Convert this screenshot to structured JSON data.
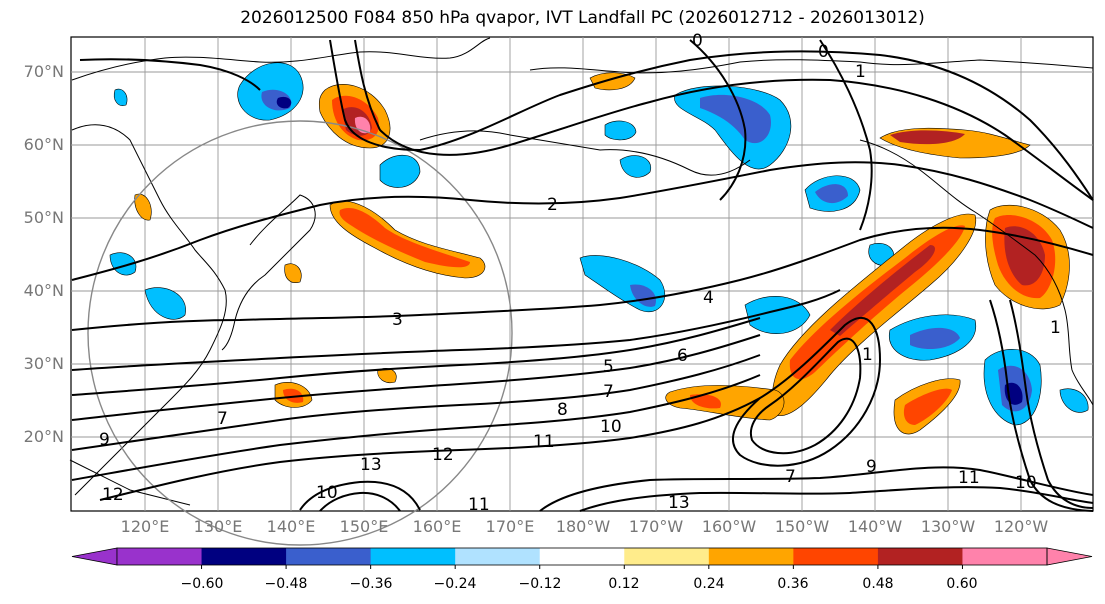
{
  "title": "2026012500 F084 850 hPa qvapor, IVT Landfall PC (2026012712 - 2026013012)",
  "lat_labels": [
    "70°N",
    "60°N",
    "50°N",
    "40°N",
    "30°N",
    "20°N"
  ],
  "lon_labels": [
    "120°E",
    "130°E",
    "140°E",
    "150°E",
    "160°E",
    "170°E",
    "180°W",
    "170°W",
    "160°W",
    "150°W",
    "140°W",
    "130°W",
    "120°W"
  ],
  "colorbar": {
    "colors": [
      "#9932CC",
      "#000080",
      "#3A5FCD",
      "#00BFFF",
      "#B0E2FF",
      "#FFFFFF",
      "#FFEC8B",
      "#FFA500",
      "#FF4500",
      "#B22222",
      "#FF82AB"
    ],
    "ticks": [
      "−0.60",
      "−0.48",
      "−0.36",
      "−0.24",
      "−0.12",
      "0.12",
      "0.24",
      "0.36",
      "0.48",
      "0.60"
    ]
  },
  "contour_labels": [
    "0",
    "0",
    "1",
    "2",
    "3",
    "4",
    "5",
    "6",
    "7",
    "7",
    "8",
    "9",
    "10",
    "11",
    "12",
    "13",
    "11",
    "10",
    "9",
    "7",
    "11",
    "10",
    "1",
    "1",
    "12",
    "13"
  ]
}
